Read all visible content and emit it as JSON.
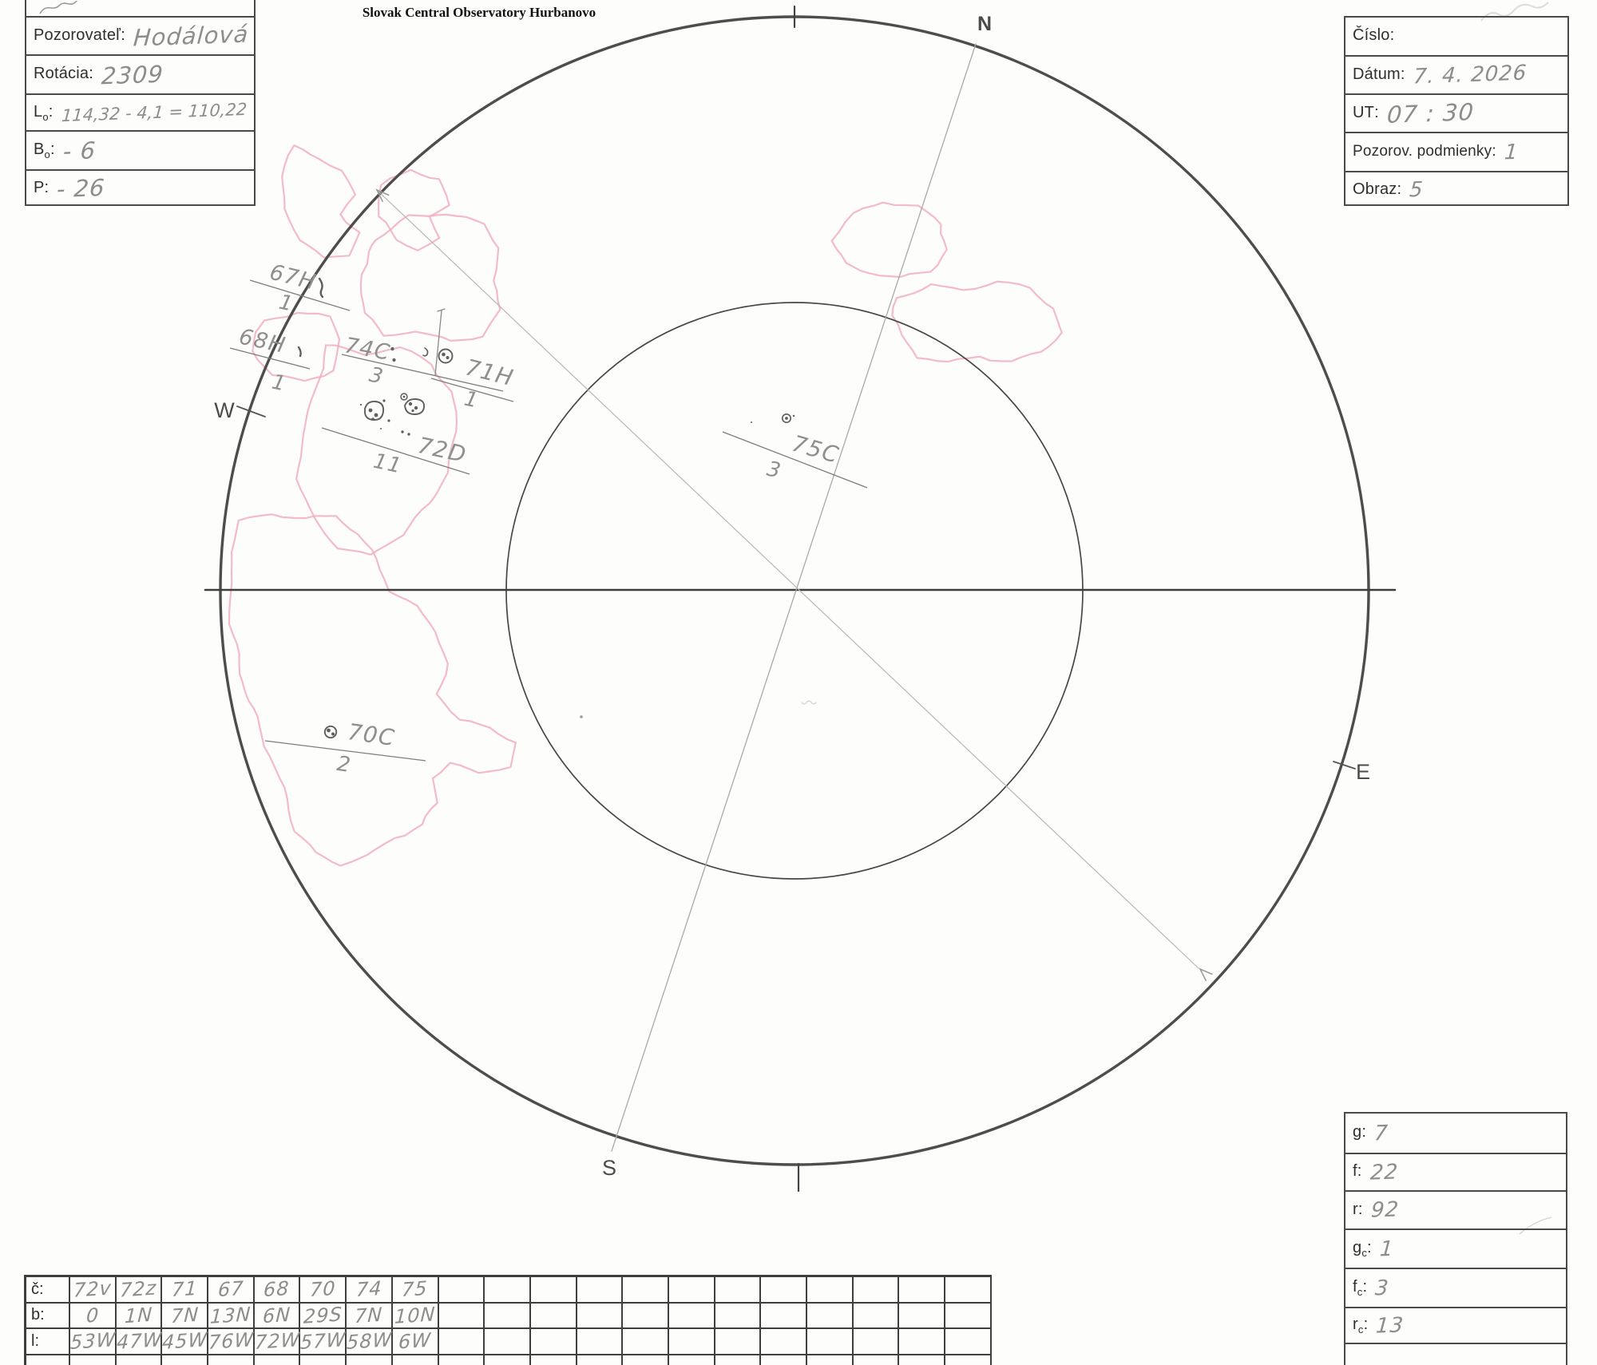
{
  "title": "Slovak Central Observatory Hurbanovo",
  "header_left": {
    "rows": [
      {
        "l1": "Pozorovateľ",
        "sub": "",
        "l2": ":",
        "value": "Hodálová"
      },
      {
        "l1": "Rotácia",
        "sub": "",
        "l2": ":",
        "value": "2309"
      },
      {
        "l1": "L",
        "sub": "o",
        "l2": ":",
        "value": "114,32 - 4,1 = 110,22"
      },
      {
        "l1": "B",
        "sub": "o",
        "l2": ":",
        "value": "- 6"
      },
      {
        "l1": "P",
        "sub": "",
        "l2": ":",
        "value": "- 26"
      }
    ]
  },
  "header_right": {
    "rows": [
      {
        "l1": "Číslo",
        "sub": "",
        "l2": ":",
        "value": ""
      },
      {
        "l1": "Dátum",
        "sub": "",
        "l2": ":",
        "value": "7. 4. 2026"
      },
      {
        "l1": "UT",
        "sub": "",
        "l2": ":",
        "value": "07 : 30"
      },
      {
        "l1": "Pozorov. podmienky",
        "sub": "",
        "l2": ":",
        "value": "1"
      },
      {
        "l1": "Obraz",
        "sub": "",
        "l2": ":",
        "value": "5"
      }
    ]
  },
  "stats_box": {
    "rows": [
      {
        "l1": "g",
        "sub": "",
        "l2": ":",
        "value": "7"
      },
      {
        "l1": "f",
        "sub": "",
        "l2": ":",
        "value": "22"
      },
      {
        "l1": "r",
        "sub": "",
        "l2": ":",
        "value": "92"
      },
      {
        "l1": "g",
        "sub": "c",
        "l2": ":",
        "value": "1"
      },
      {
        "l1": "f",
        "sub": "c",
        "l2": ":",
        "value": "3"
      },
      {
        "l1": "r",
        "sub": "c",
        "l2": ":",
        "value": "13"
      }
    ]
  },
  "groups_table": {
    "row_labels": [
      "č:",
      "b:",
      "l:"
    ],
    "columns": [
      {
        "c": "72v",
        "b": "0",
        "l": "53W"
      },
      {
        "c": "72z",
        "b": "1N",
        "l": "47W"
      },
      {
        "c": "71",
        "b": "7N",
        "l": "45W"
      },
      {
        "c": "67",
        "b": "13N",
        "l": "76W"
      },
      {
        "c": "68",
        "b": "6N",
        "l": "72W"
      },
      {
        "c": "70",
        "b": "29S",
        "l": "57W"
      },
      {
        "c": "74",
        "b": "7N",
        "l": "58W"
      },
      {
        "c": "75",
        "b": "10N",
        "l": "6W"
      }
    ],
    "empty_columns": 12
  },
  "disk": {
    "compass": {
      "n": "N",
      "e": "E",
      "s": "S",
      "w": "W"
    },
    "groups": [
      {
        "id": "67H",
        "count": "1"
      },
      {
        "id": "68H",
        "count": "1"
      },
      {
        "id": "74C",
        "count": "3"
      },
      {
        "id": "71H",
        "count": "1"
      },
      {
        "id": "72D",
        "count": "11"
      },
      {
        "id": "75C",
        "count": "3"
      },
      {
        "id": "70C",
        "count": "2"
      }
    ]
  },
  "colors": {
    "ink": "#3f3f3f",
    "pencil": "#8f8f8f",
    "faculae_pink": "#f1afbe"
  }
}
